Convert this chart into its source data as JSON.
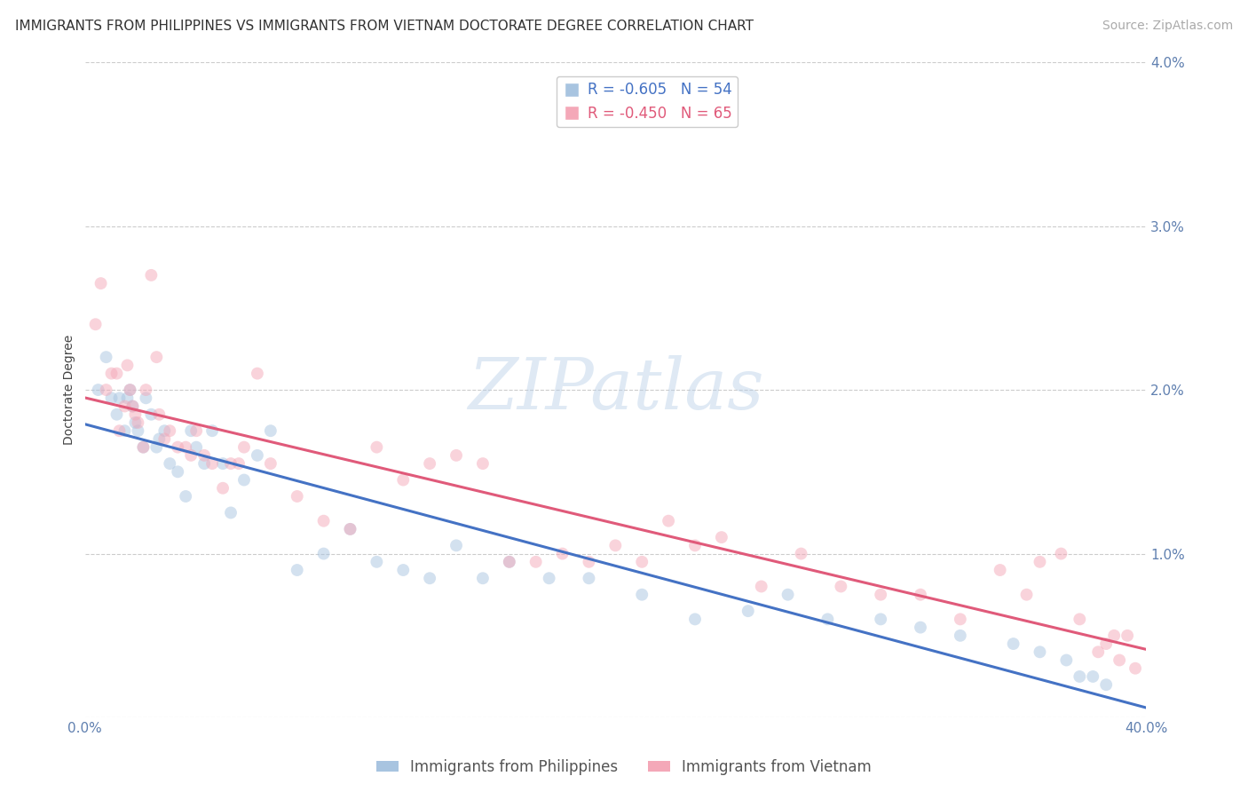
{
  "title": "IMMIGRANTS FROM PHILIPPINES VS IMMIGRANTS FROM VIETNAM DOCTORATE DEGREE CORRELATION CHART",
  "source": "Source: ZipAtlas.com",
  "ylabel": "Doctorate Degree",
  "xlim": [
    0.0,
    0.4
  ],
  "ylim": [
    0.0,
    0.04
  ],
  "yticks": [
    0.0,
    0.01,
    0.02,
    0.03,
    0.04
  ],
  "ytick_labels": [
    "",
    "1.0%",
    "2.0%",
    "3.0%",
    "4.0%"
  ],
  "xticks": [
    0.0,
    0.4
  ],
  "xtick_labels": [
    "0.0%",
    "40.0%"
  ],
  "background_color": "#ffffff",
  "grid_color": "#cccccc",
  "philippines_color": "#a8c4e0",
  "vietnam_color": "#f4a8b8",
  "philippines_line_color": "#4472c4",
  "vietnam_line_color": "#e05a7a",
  "legend_philippines_R": "-0.605",
  "legend_philippines_N": "54",
  "legend_vietnam_R": "-0.450",
  "legend_vietnam_N": "65",
  "legend_label_philippines": "Immigrants from Philippines",
  "legend_label_vietnam": "Immigrants from Vietnam",
  "watermark": "ZIPatlas",
  "philippines_x": [
    0.005,
    0.008,
    0.01,
    0.012,
    0.013,
    0.015,
    0.016,
    0.017,
    0.018,
    0.019,
    0.02,
    0.022,
    0.023,
    0.025,
    0.027,
    0.028,
    0.03,
    0.032,
    0.035,
    0.038,
    0.04,
    0.042,
    0.045,
    0.048,
    0.052,
    0.055,
    0.06,
    0.065,
    0.07,
    0.08,
    0.09,
    0.1,
    0.11,
    0.12,
    0.13,
    0.14,
    0.15,
    0.16,
    0.175,
    0.19,
    0.21,
    0.23,
    0.25,
    0.265,
    0.28,
    0.3,
    0.315,
    0.33,
    0.35,
    0.36,
    0.37,
    0.375,
    0.38,
    0.385
  ],
  "philippines_y": [
    0.02,
    0.022,
    0.0195,
    0.0185,
    0.0195,
    0.0175,
    0.0195,
    0.02,
    0.019,
    0.018,
    0.0175,
    0.0165,
    0.0195,
    0.0185,
    0.0165,
    0.017,
    0.0175,
    0.0155,
    0.015,
    0.0135,
    0.0175,
    0.0165,
    0.0155,
    0.0175,
    0.0155,
    0.0125,
    0.0145,
    0.016,
    0.0175,
    0.009,
    0.01,
    0.0115,
    0.0095,
    0.009,
    0.0085,
    0.0105,
    0.0085,
    0.0095,
    0.0085,
    0.0085,
    0.0075,
    0.006,
    0.0065,
    0.0075,
    0.006,
    0.006,
    0.0055,
    0.005,
    0.0045,
    0.004,
    0.0035,
    0.0025,
    0.0025,
    0.002
  ],
  "vietnam_x": [
    0.004,
    0.006,
    0.008,
    0.01,
    0.012,
    0.013,
    0.015,
    0.016,
    0.017,
    0.018,
    0.019,
    0.02,
    0.022,
    0.023,
    0.025,
    0.027,
    0.028,
    0.03,
    0.032,
    0.035,
    0.038,
    0.04,
    0.042,
    0.045,
    0.048,
    0.052,
    0.055,
    0.058,
    0.06,
    0.065,
    0.07,
    0.08,
    0.09,
    0.1,
    0.11,
    0.12,
    0.13,
    0.14,
    0.15,
    0.16,
    0.17,
    0.18,
    0.19,
    0.2,
    0.21,
    0.22,
    0.23,
    0.24,
    0.255,
    0.27,
    0.285,
    0.3,
    0.315,
    0.33,
    0.345,
    0.355,
    0.36,
    0.368,
    0.375,
    0.382,
    0.385,
    0.388,
    0.39,
    0.393,
    0.396
  ],
  "vietnam_y": [
    0.024,
    0.0265,
    0.02,
    0.021,
    0.021,
    0.0175,
    0.019,
    0.0215,
    0.02,
    0.019,
    0.0185,
    0.018,
    0.0165,
    0.02,
    0.027,
    0.022,
    0.0185,
    0.017,
    0.0175,
    0.0165,
    0.0165,
    0.016,
    0.0175,
    0.016,
    0.0155,
    0.014,
    0.0155,
    0.0155,
    0.0165,
    0.021,
    0.0155,
    0.0135,
    0.012,
    0.0115,
    0.0165,
    0.0145,
    0.0155,
    0.016,
    0.0155,
    0.0095,
    0.0095,
    0.01,
    0.0095,
    0.0105,
    0.0095,
    0.012,
    0.0105,
    0.011,
    0.008,
    0.01,
    0.008,
    0.0075,
    0.0075,
    0.006,
    0.009,
    0.0075,
    0.0095,
    0.01,
    0.006,
    0.004,
    0.0045,
    0.005,
    0.0035,
    0.005,
    0.003
  ],
  "title_fontsize": 11,
  "axis_label_fontsize": 10,
  "tick_fontsize": 11,
  "legend_fontsize": 12,
  "source_fontsize": 10,
  "marker_size": 100,
  "marker_alpha": 0.5,
  "line_width": 2.2
}
